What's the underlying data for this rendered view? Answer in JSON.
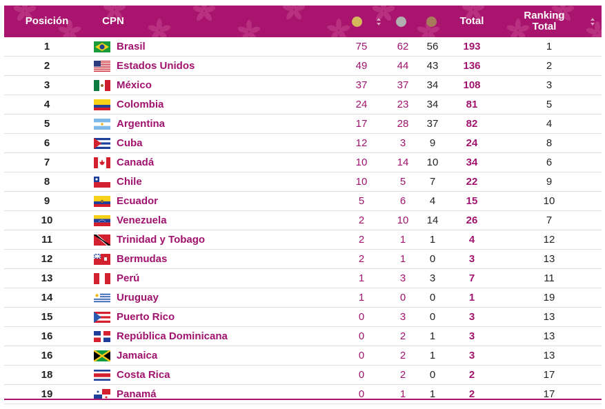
{
  "header": {
    "posicion": "Posición",
    "cpn": "CPN",
    "total": "Total",
    "ranking_line1": "Ranking",
    "ranking_line2": "Total",
    "gold_color": "#d4b85a",
    "silver_color": "#b0b0b0",
    "bronze_color": "#a87a5c"
  },
  "rows": [
    {
      "pos": "1",
      "flag": "brazil-flag",
      "name": "Brasil",
      "gold": "75",
      "silver": "62",
      "bronze": "56",
      "total": "193",
      "rank": "1"
    },
    {
      "pos": "2",
      "flag": "usa-flag",
      "name": "Estados Unidos",
      "gold": "49",
      "silver": "44",
      "bronze": "43",
      "total": "136",
      "rank": "2"
    },
    {
      "pos": "3",
      "flag": "mexico-flag",
      "name": "México",
      "gold": "37",
      "silver": "37",
      "bronze": "34",
      "total": "108",
      "rank": "3"
    },
    {
      "pos": "4",
      "flag": "colombia-flag",
      "name": "Colombia",
      "gold": "24",
      "silver": "23",
      "bronze": "34",
      "total": "81",
      "rank": "5"
    },
    {
      "pos": "5",
      "flag": "argentina-flag",
      "name": "Argentina",
      "gold": "17",
      "silver": "28",
      "bronze": "37",
      "total": "82",
      "rank": "4"
    },
    {
      "pos": "6",
      "flag": "cuba-flag",
      "name": "Cuba",
      "gold": "12",
      "silver": "3",
      "bronze": "9",
      "total": "24",
      "rank": "8"
    },
    {
      "pos": "7",
      "flag": "canada-flag",
      "name": "Canadá",
      "gold": "10",
      "silver": "14",
      "bronze": "10",
      "total": "34",
      "rank": "6"
    },
    {
      "pos": "8",
      "flag": "chile-flag",
      "name": "Chile",
      "gold": "10",
      "silver": "5",
      "bronze": "7",
      "total": "22",
      "rank": "9"
    },
    {
      "pos": "9",
      "flag": "ecuador-flag",
      "name": "Ecuador",
      "gold": "5",
      "silver": "6",
      "bronze": "4",
      "total": "15",
      "rank": "10"
    },
    {
      "pos": "10",
      "flag": "venezuela-flag",
      "name": "Venezuela",
      "gold": "2",
      "silver": "10",
      "bronze": "14",
      "total": "26",
      "rank": "7"
    },
    {
      "pos": "11",
      "flag": "trinidad-tobago-flag",
      "name": "Trinidad y Tobago",
      "gold": "2",
      "silver": "1",
      "bronze": "1",
      "total": "4",
      "rank": "12"
    },
    {
      "pos": "12",
      "flag": "bermuda-flag",
      "name": "Bermudas",
      "gold": "2",
      "silver": "1",
      "bronze": "0",
      "total": "3",
      "rank": "13"
    },
    {
      "pos": "13",
      "flag": "peru-flag",
      "name": "Perú",
      "gold": "1",
      "silver": "3",
      "bronze": "3",
      "total": "7",
      "rank": "11"
    },
    {
      "pos": "14",
      "flag": "uruguay-flag",
      "name": "Uruguay",
      "gold": "1",
      "silver": "0",
      "bronze": "0",
      "total": "1",
      "rank": "19"
    },
    {
      "pos": "15",
      "flag": "puerto-rico-flag",
      "name": "Puerto Rico",
      "gold": "0",
      "silver": "3",
      "bronze": "0",
      "total": "3",
      "rank": "13"
    },
    {
      "pos": "16",
      "flag": "dominican-republic-flag",
      "name": "República Dominicana",
      "gold": "0",
      "silver": "2",
      "bronze": "1",
      "total": "3",
      "rank": "13"
    },
    {
      "pos": "16",
      "flag": "jamaica-flag",
      "name": "Jamaica",
      "gold": "0",
      "silver": "2",
      "bronze": "1",
      "total": "3",
      "rank": "13"
    },
    {
      "pos": "18",
      "flag": "costa-rica-flag",
      "name": "Costa Rica",
      "gold": "0",
      "silver": "2",
      "bronze": "0",
      "total": "2",
      "rank": "17"
    },
    {
      "pos": "19",
      "flag": "panama-flag",
      "name": "Panamá",
      "gold": "0",
      "silver": "1",
      "bronze": "1",
      "total": "2",
      "rank": "17"
    }
  ]
}
